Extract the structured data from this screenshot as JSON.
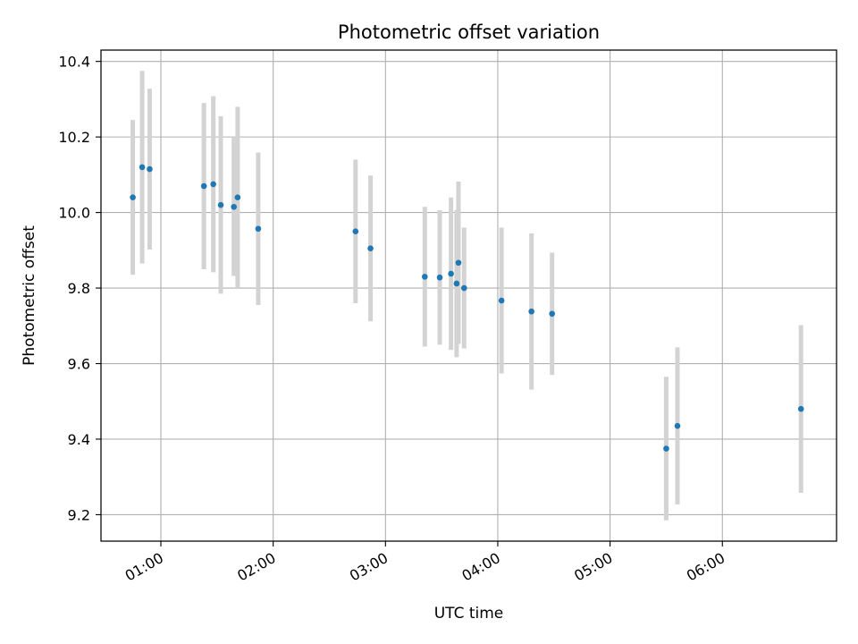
{
  "chart_data": {
    "type": "scatter",
    "title": "Photometric offset variation",
    "xlabel": "UTC time",
    "ylabel": "Photometric offset",
    "x_unit": "UTC hours",
    "xlim": [
      "00:28",
      "07:01"
    ],
    "ylim": [
      9.13,
      10.43
    ],
    "x_ticks": [
      "01:00",
      "02:00",
      "03:00",
      "04:00",
      "05:00",
      "06:00"
    ],
    "y_ticks": [
      9.2,
      9.4,
      9.6,
      9.8,
      10.0,
      10.2,
      10.4
    ],
    "grid": true,
    "marker_color": "#1f77b4",
    "errorbar_color": "#d3d3d3",
    "points": [
      {
        "x": "00:45",
        "y": 10.04,
        "yerr": 0.205
      },
      {
        "x": "00:50",
        "y": 10.12,
        "yerr": 0.255
      },
      {
        "x": "00:54",
        "y": 10.115,
        "yerr": 0.213
      },
      {
        "x": "01:23",
        "y": 10.07,
        "yerr": 0.22
      },
      {
        "x": "01:28",
        "y": 10.075,
        "yerr": 0.233
      },
      {
        "x": "01:32",
        "y": 10.02,
        "yerr": 0.235
      },
      {
        "x": "01:39",
        "y": 10.015,
        "yerr": 0.183
      },
      {
        "x": "01:41",
        "y": 10.04,
        "yerr": 0.24
      },
      {
        "x": "01:52",
        "y": 9.957,
        "yerr": 0.202
      },
      {
        "x": "02:44",
        "y": 9.95,
        "yerr": 0.19
      },
      {
        "x": "02:52",
        "y": 9.905,
        "yerr": 0.193
      },
      {
        "x": "03:21",
        "y": 9.83,
        "yerr": 0.185
      },
      {
        "x": "03:29",
        "y": 9.828,
        "yerr": 0.178
      },
      {
        "x": "03:35",
        "y": 9.838,
        "yerr": 0.202
      },
      {
        "x": "03:38",
        "y": 9.812,
        "yerr": 0.195
      },
      {
        "x": "03:39",
        "y": 9.867,
        "yerr": 0.215
      },
      {
        "x": "03:42",
        "y": 9.8,
        "yerr": 0.16
      },
      {
        "x": "04:02",
        "y": 9.767,
        "yerr": 0.193
      },
      {
        "x": "04:18",
        "y": 9.738,
        "yerr": 0.207
      },
      {
        "x": "04:29",
        "y": 9.732,
        "yerr": 0.162
      },
      {
        "x": "05:30",
        "y": 9.375,
        "yerr": 0.19
      },
      {
        "x": "05:36",
        "y": 9.435,
        "yerr": 0.208
      },
      {
        "x": "06:42",
        "y": 9.48,
        "yerr": 0.222
      }
    ]
  }
}
